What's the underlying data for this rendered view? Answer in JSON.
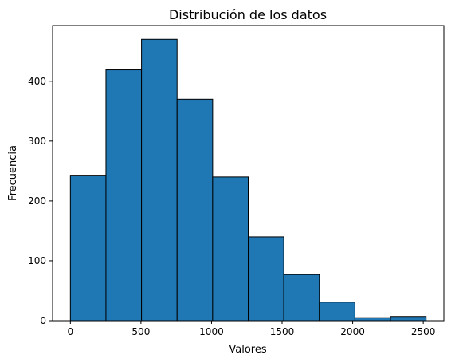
{
  "chart_data": {
    "type": "bar",
    "title": "Distribución de los datos",
    "xlabel": "Valores",
    "ylabel": "Frecuencia",
    "bins": [
      {
        "start": 0,
        "end": 252,
        "count": 243
      },
      {
        "start": 252,
        "end": 504,
        "count": 419
      },
      {
        "start": 504,
        "end": 756,
        "count": 470
      },
      {
        "start": 756,
        "end": 1008,
        "count": 370
      },
      {
        "start": 1008,
        "end": 1260,
        "count": 240
      },
      {
        "start": 1260,
        "end": 1512,
        "count": 140
      },
      {
        "start": 1512,
        "end": 1764,
        "count": 77
      },
      {
        "start": 1764,
        "end": 2016,
        "count": 31
      },
      {
        "start": 2016,
        "end": 2268,
        "count": 5
      },
      {
        "start": 2268,
        "end": 2520,
        "count": 7
      }
    ],
    "xlim": [
      -126,
      2646
    ],
    "ylim": [
      0,
      493
    ],
    "xticks": [
      0,
      500,
      1000,
      1500,
      2000,
      2500
    ],
    "yticks": [
      0,
      100,
      200,
      300,
      400
    ],
    "bar_color": "#1f77b4",
    "edge_color": "#000000",
    "grid": false,
    "legend": "none"
  }
}
